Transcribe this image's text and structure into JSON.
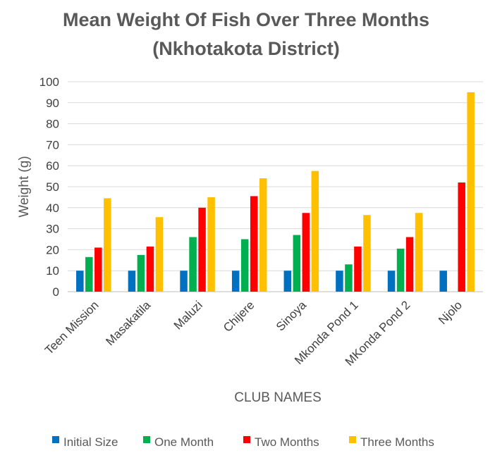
{
  "chart_data": {
    "type": "bar",
    "title": "Mean Weight Of Fish Over Three Months",
    "subtitle": "(Nkhotakota District)",
    "xlabel": "CLUB NAMES",
    "ylabel": "Weight (g)",
    "ylim": [
      0,
      100
    ],
    "yticks": [
      0,
      10,
      20,
      30,
      40,
      50,
      60,
      70,
      80,
      90,
      100
    ],
    "grid": true,
    "legend_position": "bottom",
    "categories": [
      "Teen Mission",
      "Masakatila",
      "Maluzi",
      "Chijere",
      "Sinoya",
      "Mkonda Pond 1",
      "MKonda Pond 2",
      "Njolo"
    ],
    "series": [
      {
        "name": "Initial Size",
        "color": "#0070C0",
        "values": [
          10,
          10,
          10,
          10,
          10,
          10,
          10,
          10
        ]
      },
      {
        "name": "One Month",
        "color": "#00B050",
        "values": [
          16.5,
          17.5,
          26,
          25,
          27,
          13,
          20.5,
          0
        ]
      },
      {
        "name": "Two Months",
        "color": "#FF0000",
        "values": [
          21,
          21.5,
          40,
          45.5,
          37.5,
          21.5,
          26,
          52
        ]
      },
      {
        "name": "Three Months",
        "color": "#FFC000",
        "values": [
          44.5,
          35.5,
          45,
          54,
          57.5,
          36.5,
          37.5,
          95
        ]
      }
    ]
  }
}
